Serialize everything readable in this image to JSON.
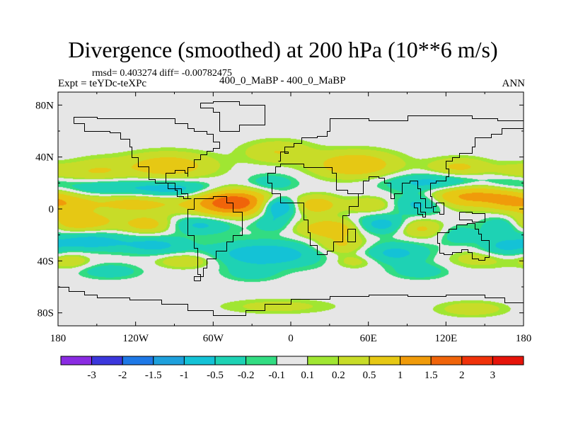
{
  "header": {
    "title": "Divergence (smoothed) at 200 hPa (10**6 m/s)",
    "stats": "rmsd= 0.403274 diff= -0.00782475",
    "expt": "Expt = teYDc-teXPc",
    "center_label": "400_0_MaBP - 400_0_MaBP",
    "season": "ANN"
  },
  "colors": {
    "missing": "#e6e6e6",
    "frame": "#000000",
    "coastline": "#000000",
    "bins": [
      "#8a2be2",
      "#3b37dc",
      "#1e78e6",
      "#1ea0dc",
      "#14c2d6",
      "#1ed2b4",
      "#32dc82",
      "#e6e6e6",
      "#a0e632",
      "#c8dc28",
      "#e6c814",
      "#f09b0a",
      "#f0640a",
      "#f0320a",
      "#e6140a"
    ]
  },
  "chart_data": {
    "type": "heatmap",
    "title": "Divergence (smoothed) at 200 hPa (10**6 m/s)",
    "subtitle": "400_0_MaBP - 400_0_MaBP",
    "xlabel": "",
    "ylabel": "",
    "x_range": [
      -180,
      180
    ],
    "y_range": [
      -90,
      90
    ],
    "x_ticks": [
      -180,
      -120,
      -60,
      0,
      60,
      120,
      180
    ],
    "x_tick_labels": [
      "180",
      "120W",
      "60W",
      "0",
      "60E",
      "120E",
      "180"
    ],
    "y_ticks": [
      80,
      40,
      0,
      -40,
      -80
    ],
    "y_tick_labels": [
      "80N",
      "40N",
      "0",
      "40S",
      "80S"
    ],
    "colorbar_levels": [
      -3,
      -2,
      -1.5,
      -1,
      -0.5,
      -0.2,
      -0.1,
      0.1,
      0.2,
      0.5,
      1,
      1.5,
      2,
      3
    ],
    "colorbar_labels": [
      "-3",
      "-2",
      "-1.5",
      "-1",
      "-0.5",
      "-0.2",
      "-0.1",
      "0.1",
      "0.2",
      "0.5",
      "1",
      "1.5",
      "2",
      "3"
    ],
    "field_features": [
      {
        "lon": -45,
        "lat": 5,
        "value": 2.0,
        "desc": "divergence maximum over tropical Atlantic"
      },
      {
        "lon": -10,
        "lat": 2,
        "value": -1.2,
        "desc": "convergence minimum"
      },
      {
        "lon": 140,
        "lat": 10,
        "value": 1.2,
        "desc": "divergence band over western Pacific"
      },
      {
        "lon": -80,
        "lat": 32,
        "value": 0.8,
        "desc": "northern positive band"
      },
      {
        "lon": -95,
        "lat": 15,
        "value": -0.8,
        "desc": "northern negative band"
      },
      {
        "lon": 30,
        "lat": -15,
        "value": 0.9,
        "desc": "southern positive cell"
      },
      {
        "lon": -20,
        "lat": -35,
        "value": -0.8,
        "desc": "southern negative band"
      }
    ]
  }
}
